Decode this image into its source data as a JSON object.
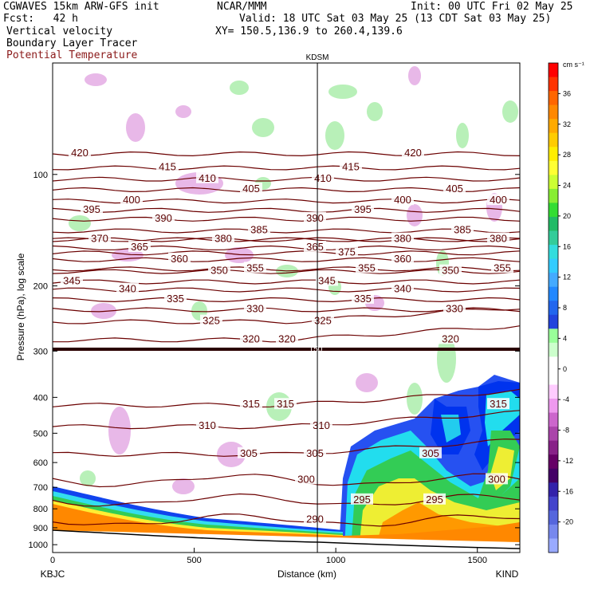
{
  "header": {
    "line1_left": "CGWAVES 15km ARW-GFS init",
    "line1_mid": "NCAR/MMM",
    "line1_right": "Init: 00 UTC Fri 02 May 25",
    "line2_left": "Fcst:   42 h",
    "line2_right": "Valid: 18 UTC Sat 03 May 25 (13 CDT Sat 03 May 25)",
    "line3_left": "Vertical velocity",
    "line3_right": "XY= 150.5,136.9 to 260.4,139.6",
    "line4_left": "Boundary Layer Tracer",
    "line5_left": "Potential Temperature"
  },
  "chart_data": {
    "type": "heatmap",
    "xlabel": "Distance (km)",
    "ylabel": "Pressure (hPa), log scale",
    "xlim": [
      0,
      1650
    ],
    "ylim": [
      1050,
      50
    ],
    "y_scale": "log",
    "x_ticks": [
      0,
      500,
      1000,
      1500
    ],
    "y_ticks": [
      100,
      200,
      300,
      400,
      500,
      600,
      700,
      800,
      900,
      1000
    ],
    "endpoints": {
      "left": "KBJC",
      "right": "KIND"
    },
    "station_marker": {
      "label": "KDSM",
      "x": 935
    },
    "tropopause_label": "150",
    "colorbar": {
      "units": "cm s⁻¹",
      "labels": [
        36,
        32,
        28,
        24,
        20,
        16,
        12,
        8,
        4,
        0,
        -4,
        -8,
        -12,
        -16,
        -20
      ],
      "colors": [
        "#ff0000",
        "#ff3300",
        "#ff6600",
        "#ff8800",
        "#ffaa00",
        "#ffcc00",
        "#ffee00",
        "#ffff33",
        "#ccff33",
        "#88ee33",
        "#33dd33",
        "#22bb66",
        "#33cc99",
        "#33dddd",
        "#33ccff",
        "#44aaff",
        "#2288ff",
        "#2266ee",
        "#2244dd",
        "#99ff99",
        "#ccffcc",
        "#ffffff",
        "#ffffff",
        "#ffccff",
        "#ee99ee",
        "#cc66cc",
        "#aa44aa",
        "#882288",
        "#660066",
        "#440066",
        "#3322aa",
        "#4444cc",
        "#5566dd",
        "#7788ee",
        "#99aaff"
      ]
    },
    "theta_contours": [
      {
        "theta": 420,
        "label_x": [
          100,
          518
        ],
        "p": 88
      },
      {
        "theta": 415,
        "label_x": [
          210,
          440
        ],
        "p": 96
      },
      {
        "theta": 410,
        "label_x": [
          260,
          405
        ],
        "p": 103
      },
      {
        "theta": 405,
        "label_x": [
          315,
          570
        ],
        "p": 110
      },
      {
        "theta": 400,
        "label_x": [
          165,
          505,
          625
        ],
        "p": 118
      },
      {
        "theta": 395,
        "label_x": [
          115,
          455
        ],
        "p": 125
      },
      {
        "theta": 390,
        "label_x": [
          205,
          395
        ],
        "p": 132
      },
      {
        "theta": 385,
        "label_x": [
          325,
          580
        ],
        "p": 142
      },
      {
        "theta": 380,
        "label_x": [
          280,
          505,
          625
        ],
        "p": 150
      },
      {
        "theta": 375,
        "label_x": [
          435
        ],
        "p": 163
      },
      {
        "theta": 370,
        "label_x": [
          125
        ],
        "p": 150
      },
      {
        "theta": 365,
        "label_x": [
          175,
          395
        ],
        "p": 158
      },
      {
        "theta": 360,
        "label_x": [
          225,
          505
        ],
        "p": 170
      },
      {
        "theta": 355,
        "label_x": [
          320,
          460,
          630
        ],
        "p": 180
      },
      {
        "theta": 350,
        "label_x": [
          275,
          565
        ],
        "p": 183
      },
      {
        "theta": 345,
        "label_x": [
          90,
          410
        ],
        "p": 195
      },
      {
        "theta": 340,
        "label_x": [
          160,
          505
        ],
        "p": 205
      },
      {
        "theta": 335,
        "label_x": [
          220,
          455
        ],
        "p": 218
      },
      {
        "theta": 330,
        "label_x": [
          320,
          570
        ],
        "p": 232
      },
      {
        "theta": 325,
        "label_x": [
          265,
          405
        ],
        "p": 250
      },
      {
        "theta": 320,
        "label_x": [
          315,
          360,
          565
        ],
        "p": 280
      },
      {
        "theta": 315,
        "label_x": [
          315,
          358,
          625
        ],
        "p": 420
      },
      {
        "theta": 310,
        "label_x": [
          260,
          403
        ],
        "p": 480
      },
      {
        "theta": 305,
        "label_x": [
          312,
          395,
          540
        ],
        "p": 570
      },
      {
        "theta": 300,
        "label_x": [
          384,
          623
        ],
        "p": 670
      },
      {
        "theta": 295,
        "label_x": [
          454,
          545
        ],
        "p": 760
      },
      {
        "theta": 290,
        "label_x": [
          395
        ],
        "p": 860
      }
    ]
  }
}
